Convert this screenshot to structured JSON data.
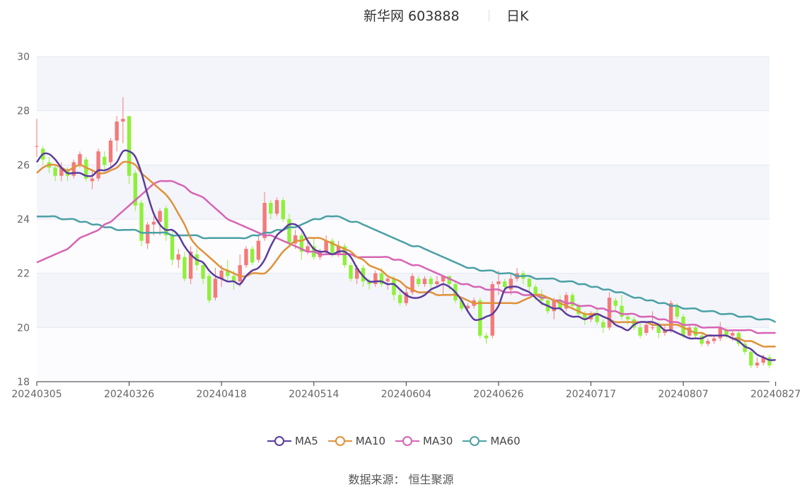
{
  "header": {
    "title": "新华网 603888",
    "period": "日K"
  },
  "legend": [
    {
      "label": "MA5",
      "color": "#5b3b9e"
    },
    {
      "label": "MA10",
      "color": "#e0913a"
    },
    {
      "label": "MA30",
      "color": "#d764b4"
    },
    {
      "label": "MA60",
      "color": "#4aa0a4"
    }
  ],
  "footer": {
    "source": "数据来源：  恒生聚源"
  },
  "colors": {
    "up": "#f47a7a",
    "down": "#8ff03a",
    "band": "#f3f5fb",
    "grid": "#e6e8f0"
  },
  "chart_data": {
    "type": "candlestick",
    "title": "新华网 603888",
    "ylim": [
      18,
      30
    ],
    "yticks": [
      18,
      20,
      22,
      24,
      26,
      28,
      30
    ],
    "xtick_labels": [
      "20240305",
      "20240326",
      "20240418",
      "20240514",
      "20240604",
      "20240626",
      "20240717",
      "20240807",
      "20240827"
    ],
    "xtick_index": [
      0,
      15,
      30,
      45,
      60,
      75,
      90,
      105,
      120
    ],
    "candles": [
      [
        26.7,
        26.7,
        27.7,
        26.3
      ],
      [
        26.6,
        26.2,
        26.7,
        26.0
      ],
      [
        26.1,
        25.9,
        26.3,
        25.7
      ],
      [
        25.9,
        25.6,
        26.0,
        25.4
      ],
      [
        25.6,
        25.9,
        26.1,
        25.4
      ],
      [
        25.8,
        25.6,
        25.9,
        25.4
      ],
      [
        25.6,
        26.1,
        26.2,
        25.5
      ],
      [
        26.0,
        26.4,
        26.5,
        25.9
      ],
      [
        26.2,
        25.5,
        26.3,
        25.4
      ],
      [
        25.4,
        25.5,
        25.8,
        25.1
      ],
      [
        25.5,
        26.5,
        26.6,
        25.4
      ],
      [
        26.3,
        26.0,
        26.5,
        25.8
      ],
      [
        26.1,
        26.9,
        27.0,
        25.9
      ],
      [
        26.9,
        27.6,
        27.8,
        26.5
      ],
      [
        27.6,
        27.7,
        28.5,
        26.8
      ],
      [
        27.8,
        25.6,
        27.8,
        25.3
      ],
      [
        25.7,
        24.5,
        25.8,
        24.3
      ],
      [
        24.6,
        23.2,
        24.7,
        23.0
      ],
      [
        23.1,
        23.8,
        23.9,
        22.9
      ],
      [
        23.8,
        23.9,
        24.1,
        23.4
      ],
      [
        23.9,
        24.3,
        24.4,
        23.4
      ],
      [
        24.4,
        23.4,
        24.5,
        23.2
      ],
      [
        23.4,
        22.5,
        23.6,
        22.3
      ],
      [
        22.5,
        22.7,
        22.9,
        22.2
      ],
      [
        22.6,
        21.8,
        22.8,
        21.7
      ],
      [
        21.8,
        22.8,
        23.0,
        21.6
      ],
      [
        22.7,
        22.3,
        22.9,
        22.1
      ],
      [
        22.3,
        21.8,
        22.4,
        21.6
      ],
      [
        21.9,
        21.0,
        22.0,
        20.9
      ],
      [
        21.1,
        21.8,
        22.2,
        21.0
      ],
      [
        21.8,
        22.1,
        22.3,
        21.5
      ],
      [
        22.1,
        21.9,
        22.5,
        21.7
      ],
      [
        21.9,
        21.7,
        22.1,
        21.4
      ],
      [
        21.7,
        22.3,
        22.7,
        21.5
      ],
      [
        22.3,
        22.9,
        23.0,
        22.2
      ],
      [
        22.9,
        22.4,
        23.0,
        22.3
      ],
      [
        22.5,
        23.2,
        23.4,
        22.4
      ],
      [
        23.3,
        24.6,
        25.0,
        23.2
      ],
      [
        24.6,
        24.2,
        24.7,
        24.0
      ],
      [
        24.2,
        24.7,
        24.8,
        24.1
      ],
      [
        24.7,
        24.0,
        24.8,
        23.9
      ],
      [
        24.0,
        23.1,
        24.2,
        23.0
      ],
      [
        23.1,
        23.4,
        23.6,
        22.9
      ],
      [
        23.4,
        22.8,
        23.5,
        22.5
      ],
      [
        22.8,
        23.0,
        23.2,
        22.7
      ],
      [
        23.0,
        22.6,
        23.3,
        22.5
      ],
      [
        22.6,
        22.8,
        22.9,
        22.5
      ],
      [
        22.8,
        23.2,
        23.4,
        22.7
      ],
      [
        23.2,
        22.7,
        23.3,
        22.6
      ],
      [
        22.7,
        23.0,
        23.2,
        22.6
      ],
      [
        23.0,
        22.3,
        23.1,
        22.2
      ],
      [
        22.3,
        21.8,
        22.4,
        21.7
      ],
      [
        21.8,
        22.2,
        22.3,
        21.6
      ],
      [
        22.2,
        21.7,
        22.3,
        21.5
      ],
      [
        21.7,
        21.6,
        21.8,
        21.4
      ],
      [
        21.6,
        22.0,
        22.1,
        21.5
      ],
      [
        22.0,
        21.6,
        22.2,
        21.5
      ],
      [
        21.7,
        21.8,
        21.9,
        21.4
      ],
      [
        21.8,
        21.2,
        21.9,
        21.0
      ],
      [
        21.2,
        20.9,
        21.4,
        20.8
      ],
      [
        20.9,
        21.3,
        21.5,
        20.8
      ],
      [
        21.3,
        21.9,
        22.0,
        21.2
      ],
      [
        21.8,
        21.6,
        21.9,
        21.5
      ],
      [
        21.6,
        21.8,
        21.9,
        21.5
      ],
      [
        21.8,
        21.6,
        21.9,
        21.4
      ],
      [
        21.6,
        21.7,
        21.9,
        21.5
      ],
      [
        21.7,
        21.9,
        21.9,
        21.2
      ],
      [
        21.9,
        21.6,
        21.9,
        21.4
      ],
      [
        21.6,
        21.0,
        21.7,
        20.9
      ],
      [
        21.0,
        20.7,
        21.1,
        20.6
      ],
      [
        20.7,
        20.8,
        20.9,
        20.6
      ],
      [
        20.8,
        21.0,
        21.1,
        20.7
      ],
      [
        21.0,
        19.7,
        21.1,
        19.6
      ],
      [
        19.7,
        19.6,
        19.8,
        19.4
      ],
      [
        19.7,
        21.6,
        21.7,
        19.6
      ],
      [
        21.6,
        21.7,
        22.1,
        21.2
      ],
      [
        21.7,
        21.5,
        21.8,
        21.3
      ],
      [
        21.4,
        21.8,
        22.0,
        21.2
      ],
      [
        21.8,
        22.0,
        22.2,
        21.7
      ],
      [
        22.0,
        21.8,
        22.1,
        21.6
      ],
      [
        21.8,
        21.5,
        21.9,
        21.3
      ],
      [
        21.5,
        21.2,
        21.6,
        21.0
      ],
      [
        21.2,
        21.0,
        21.4,
        20.8
      ],
      [
        21.0,
        20.6,
        21.1,
        20.5
      ],
      [
        20.6,
        21.0,
        21.1,
        20.3
      ],
      [
        21.0,
        20.7,
        21.2,
        20.6
      ],
      [
        20.7,
        21.2,
        21.3,
        20.6
      ],
      [
        21.2,
        20.8,
        21.3,
        20.7
      ],
      [
        20.8,
        20.5,
        20.9,
        20.4
      ],
      [
        20.5,
        20.3,
        20.6,
        20.1
      ],
      [
        20.3,
        20.5,
        20.6,
        20.2
      ],
      [
        20.5,
        20.2,
        20.7,
        20.1
      ],
      [
        20.2,
        20.0,
        20.3,
        19.8
      ],
      [
        20.0,
        21.1,
        21.3,
        19.9
      ],
      [
        21.0,
        20.8,
        21.1,
        20.6
      ],
      [
        20.8,
        20.4,
        21.2,
        20.3
      ],
      [
        20.4,
        20.3,
        20.5,
        20.1
      ],
      [
        20.3,
        20.0,
        20.4,
        19.9
      ],
      [
        20.0,
        19.7,
        20.2,
        19.6
      ],
      [
        19.8,
        20.1,
        20.2,
        19.7
      ],
      [
        20.0,
        20.0,
        20.6,
        19.9
      ],
      [
        20.1,
        19.8,
        20.2,
        19.6
      ],
      [
        19.8,
        19.9,
        20.1,
        19.7
      ],
      [
        19.9,
        20.9,
        21.0,
        19.8
      ],
      [
        20.8,
        20.4,
        20.9,
        20.3
      ],
      [
        20.4,
        19.7,
        20.5,
        19.6
      ],
      [
        19.7,
        20.0,
        20.1,
        19.6
      ],
      [
        20.0,
        19.7,
        20.1,
        19.6
      ],
      [
        19.7,
        19.4,
        19.8,
        19.3
      ],
      [
        19.4,
        19.5,
        19.6,
        19.3
      ],
      [
        19.5,
        19.6,
        19.7,
        19.4
      ],
      [
        19.6,
        20.0,
        20.2,
        19.5
      ],
      [
        19.9,
        19.7,
        20.0,
        19.6
      ],
      [
        19.7,
        19.8,
        19.9,
        19.5
      ],
      [
        19.8,
        19.4,
        19.9,
        19.3
      ],
      [
        19.4,
        19.1,
        19.5,
        19.0
      ],
      [
        19.1,
        18.6,
        19.2,
        18.5
      ],
      [
        18.6,
        18.7,
        18.9,
        18.5
      ],
      [
        18.7,
        18.9,
        19.0,
        18.6
      ],
      [
        18.9,
        18.6,
        19.0,
        18.5
      ]
    ],
    "series": [
      {
        "name": "MA5",
        "values": [
          26.1,
          26.4,
          26.4,
          26.2,
          25.9,
          25.7,
          25.7,
          25.7,
          25.6,
          25.6,
          25.8,
          25.8,
          25.9,
          26.1,
          26.5,
          26.5,
          26.3,
          25.7,
          24.9,
          24.2,
          23.8,
          23.6,
          23.6,
          23.4,
          23.0,
          22.7,
          22.5,
          22.4,
          22.1,
          21.9,
          21.8,
          21.7,
          21.7,
          21.6,
          21.9,
          22.1,
          22.2,
          22.5,
          23.0,
          23.4,
          23.6,
          23.8,
          23.8,
          23.6,
          23.2,
          22.9,
          22.8,
          22.8,
          22.7,
          22.8,
          22.8,
          22.6,
          22.2,
          21.9,
          21.7,
          21.7,
          21.7,
          21.6,
          21.6,
          21.4,
          21.2,
          21.1,
          21.1,
          21.2,
          21.4,
          21.5,
          21.6,
          21.5,
          21.3,
          21.0,
          20.6,
          20.3,
          20.3,
          20.4,
          20.5,
          20.8,
          21.4,
          21.5,
          21.5,
          21.4,
          21.3,
          21.1,
          20.9,
          20.8,
          20.7,
          20.7,
          20.5,
          20.4,
          20.4,
          20.3,
          20.4,
          20.5,
          20.4,
          20.3,
          20.1,
          20.0,
          19.9,
          20.1,
          20.2,
          20.2,
          20.2,
          20.1,
          19.9,
          19.9,
          19.8,
          19.7,
          19.6,
          19.6,
          19.6,
          19.7,
          19.7,
          19.7,
          19.7,
          19.6,
          19.5,
          19.3,
          19.2,
          19.0,
          18.9,
          18.8,
          18.8
        ]
      },
      {
        "name": "MA10",
        "values": [
          25.7,
          25.9,
          26.0,
          26.0,
          25.9,
          25.8,
          25.9,
          26.0,
          25.9,
          25.8,
          25.7,
          25.7,
          25.8,
          25.9,
          26.1,
          26.1,
          26.0,
          25.7,
          25.5,
          25.3,
          25.1,
          24.9,
          24.6,
          24.2,
          23.8,
          23.3,
          23.0,
          22.8,
          22.6,
          22.4,
          22.2,
          22.1,
          22.0,
          21.9,
          21.9,
          22.0,
          22.0,
          22.0,
          22.2,
          22.5,
          22.8,
          23.0,
          23.2,
          23.2,
          23.3,
          23.3,
          23.3,
          23.2,
          23.1,
          23.0,
          22.9,
          22.8,
          22.6,
          22.5,
          22.3,
          22.2,
          22.1,
          21.9,
          21.8,
          21.7,
          21.5,
          21.4,
          21.3,
          21.3,
          21.3,
          21.2,
          21.2,
          21.2,
          21.2,
          21.1,
          21.0,
          20.9,
          20.9,
          20.9,
          20.9,
          20.9,
          20.9,
          20.9,
          20.9,
          21.0,
          21.1,
          21.2,
          21.2,
          21.1,
          21.0,
          20.9,
          20.8,
          20.7,
          20.6,
          20.5,
          20.5,
          20.5,
          20.4,
          20.3,
          20.2,
          20.2,
          20.2,
          20.2,
          20.2,
          20.2,
          20.1,
          20.1,
          20.1,
          20.1,
          20.1,
          20.0,
          19.9,
          19.8,
          19.8,
          19.7,
          19.7,
          19.7,
          19.7,
          19.6,
          19.6,
          19.5,
          19.5,
          19.4,
          19.3,
          19.3,
          19.3
        ]
      },
      {
        "name": "MA30",
        "values": [
          22.4,
          22.5,
          22.6,
          22.7,
          22.8,
          22.9,
          23.1,
          23.3,
          23.4,
          23.5,
          23.6,
          23.8,
          23.9,
          24.1,
          24.3,
          24.5,
          24.7,
          24.9,
          25.1,
          25.3,
          25.4,
          25.4,
          25.4,
          25.3,
          25.2,
          25.0,
          24.9,
          24.8,
          24.6,
          24.4,
          24.2,
          24.0,
          23.9,
          23.8,
          23.7,
          23.6,
          23.5,
          23.4,
          23.4,
          23.3,
          23.2,
          23.1,
          23.0,
          22.9,
          22.8,
          22.8,
          22.7,
          22.7,
          22.7,
          22.7,
          22.7,
          22.7,
          22.6,
          22.6,
          22.6,
          22.6,
          22.6,
          22.6,
          22.5,
          22.5,
          22.4,
          22.3,
          22.3,
          22.2,
          22.1,
          22.0,
          21.9,
          21.8,
          21.7,
          21.6,
          21.6,
          21.5,
          21.5,
          21.4,
          21.4,
          21.4,
          21.3,
          21.3,
          21.3,
          21.2,
          21.2,
          21.2,
          21.1,
          21.1,
          21.0,
          21.0,
          20.9,
          20.9,
          20.8,
          20.8,
          20.8,
          20.7,
          20.7,
          20.6,
          20.6,
          20.5,
          20.5,
          20.5,
          20.4,
          20.4,
          20.4,
          20.3,
          20.3,
          20.2,
          20.2,
          20.1,
          20.1,
          20.1,
          20.0,
          20.0,
          20.0,
          20.0,
          19.9,
          19.9,
          19.9,
          19.9,
          19.9,
          19.8,
          19.8,
          19.8,
          19.8
        ]
      },
      {
        "name": "MA60",
        "values": [
          24.1,
          24.1,
          24.1,
          24.1,
          24.0,
          24.0,
          24.0,
          23.9,
          23.9,
          23.8,
          23.8,
          23.7,
          23.7,
          23.6,
          23.6,
          23.6,
          23.6,
          23.5,
          23.5,
          23.5,
          23.5,
          23.5,
          23.4,
          23.4,
          23.4,
          23.4,
          23.4,
          23.3,
          23.3,
          23.3,
          23.3,
          23.3,
          23.3,
          23.3,
          23.3,
          23.4,
          23.4,
          23.5,
          23.5,
          23.6,
          23.6,
          23.7,
          23.7,
          23.8,
          23.9,
          24.0,
          24.0,
          24.1,
          24.1,
          24.1,
          24.0,
          23.9,
          23.9,
          23.8,
          23.7,
          23.6,
          23.5,
          23.4,
          23.3,
          23.2,
          23.1,
          23.0,
          23.0,
          22.9,
          22.8,
          22.7,
          22.6,
          22.5,
          22.4,
          22.3,
          22.2,
          22.2,
          22.1,
          22.1,
          22.1,
          22.0,
          22.0,
          22.0,
          21.9,
          21.9,
          21.9,
          21.8,
          21.8,
          21.8,
          21.8,
          21.7,
          21.7,
          21.7,
          21.6,
          21.6,
          21.5,
          21.5,
          21.4,
          21.4,
          21.3,
          21.3,
          21.2,
          21.1,
          21.1,
          21.0,
          21.0,
          20.9,
          20.9,
          20.8,
          20.8,
          20.7,
          20.7,
          20.7,
          20.6,
          20.6,
          20.6,
          20.5,
          20.5,
          20.5,
          20.4,
          20.4,
          20.4,
          20.3,
          20.3,
          20.3,
          20.2
        ]
      }
    ]
  }
}
